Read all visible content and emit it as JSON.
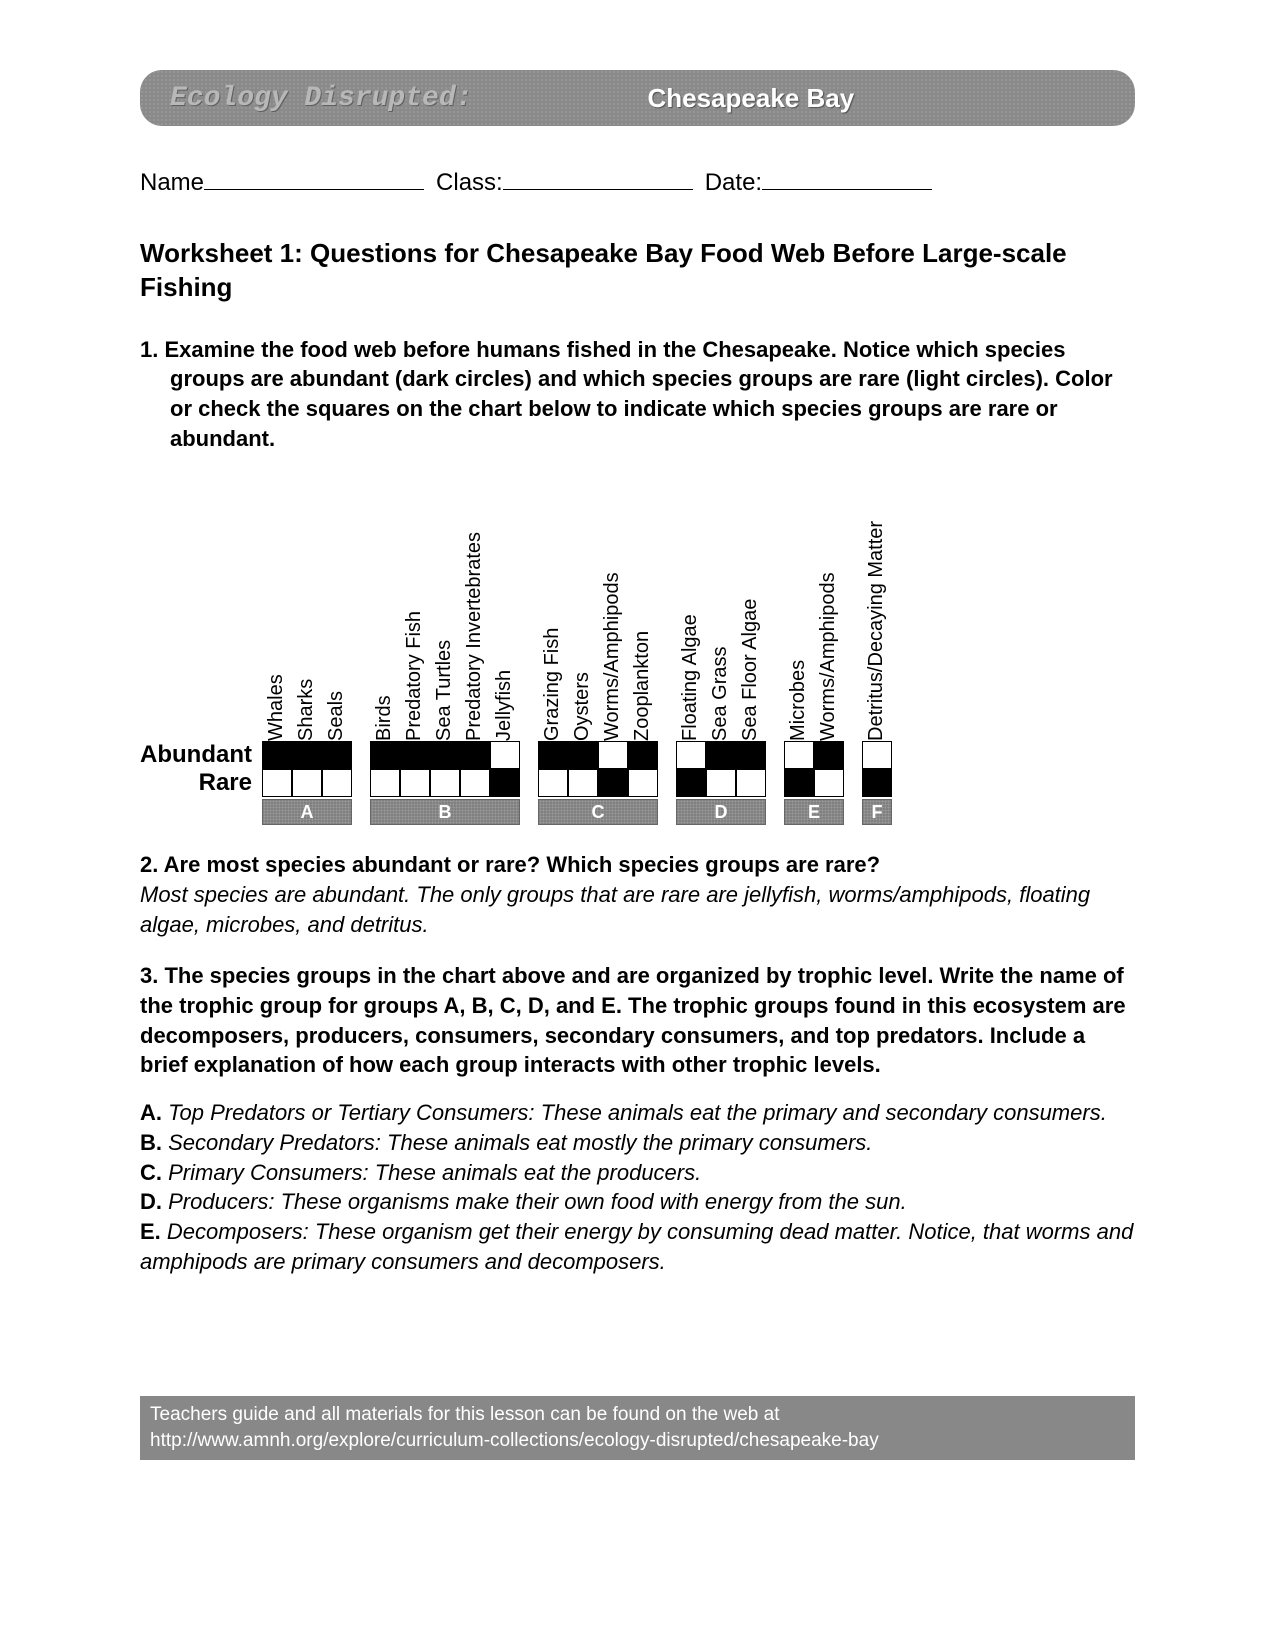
{
  "header": {
    "left": "Ecology Disrupted:",
    "right": "Chesapeake Bay"
  },
  "fields": {
    "name_label": "Name",
    "class_label": "Class:",
    "date_label": "Date:",
    "name_width": 220,
    "class_width": 190,
    "date_width": 170
  },
  "title": "Worksheet 1: Questions for Chesapeake Bay Food Web Before Large-scale Fishing",
  "q1": {
    "number": "1.",
    "text": "Examine the food web before humans fished in the Chesapeake. Notice which species groups are abundant (dark circles) and which species groups are rare (light circles). Color or check the squares on the chart below to indicate which species groups are rare or abundant."
  },
  "chart": {
    "row_labels": [
      "Abundant",
      "Rare"
    ],
    "groups": [
      {
        "letter": "A",
        "columns": [
          {
            "label": "Whales",
            "cells": [
              "black",
              "white"
            ]
          },
          {
            "label": "Sharks",
            "cells": [
              "black",
              "white"
            ]
          },
          {
            "label": "Seals",
            "cells": [
              "black",
              "white"
            ]
          }
        ]
      },
      {
        "letter": "B",
        "columns": [
          {
            "label": "Birds",
            "cells": [
              "black",
              "white"
            ]
          },
          {
            "label": "Predatory Fish",
            "cells": [
              "black",
              "white"
            ]
          },
          {
            "label": "Sea Turtles",
            "cells": [
              "black",
              "white"
            ]
          },
          {
            "label": "Predatory Invertebrates",
            "cells": [
              "black",
              "white"
            ]
          },
          {
            "label": "Jellyfish",
            "cells": [
              "white",
              "black"
            ]
          }
        ]
      },
      {
        "letter": "C",
        "columns": [
          {
            "label": "Grazing Fish",
            "cells": [
              "black",
              "white"
            ]
          },
          {
            "label": "Oysters",
            "cells": [
              "black",
              "white"
            ]
          },
          {
            "label": "Worms/Amphipods",
            "cells": [
              "white",
              "black"
            ]
          },
          {
            "label": "Zooplankton",
            "cells": [
              "black",
              "white"
            ]
          }
        ]
      },
      {
        "letter": "D",
        "columns": [
          {
            "label": "Floating Algae",
            "cells": [
              "white",
              "black"
            ]
          },
          {
            "label": "Sea Grass",
            "cells": [
              "black",
              "white"
            ]
          },
          {
            "label": "Sea Floor Algae",
            "cells": [
              "black",
              "white"
            ]
          }
        ]
      },
      {
        "letter": "E",
        "columns": [
          {
            "label": "Microbes",
            "cells": [
              "white",
              "black"
            ]
          },
          {
            "label": "Worms/Amphipods",
            "cells": [
              "black",
              "white"
            ]
          }
        ]
      },
      {
        "letter": "F",
        "columns": [
          {
            "label": "Detritus/Decaying Matter",
            "cells": [
              "white",
              "black"
            ]
          }
        ]
      }
    ]
  },
  "q2": {
    "text": "2. Are most species abundant or rare? Which species groups are rare?",
    "answer": "Most species are abundant. The only groups that are rare are jellyfish, worms/amphipods, floating algae, microbes, and detritus."
  },
  "q3": {
    "text": "3. The species groups in the chart above and are organized by trophic level. Write the name of the trophic group for groups A, B, C, D, and E. The trophic groups found in this ecosystem are decomposers, producers, consumers, secondary consumers, and top predators. Include a brief explanation of how each group interacts with other trophic levels.",
    "answers": [
      {
        "letter": "A.",
        "body": "Top Predators or Tertiary Consumers: These animals eat the primary and secondary consumers."
      },
      {
        "letter": "B.",
        "body": "Secondary Predators: These animals eat mostly the primary consumers."
      },
      {
        "letter": "C.",
        "body": "Primary Consumers: These animals eat the producers."
      },
      {
        "letter": "D.",
        "body": "Producers: These organisms make their own food with energy from the sun."
      },
      {
        "letter": "E.",
        "body": "Decomposers: These organism get their energy by consuming dead matter. Notice, that worms and amphipods are primary consumers and decomposers."
      }
    ]
  },
  "footer": {
    "line1": "Teachers guide and all materials for this lesson can be found on the web at",
    "line2": "http://www.amnh.org/explore/curriculum-collections/ecology-disrupted/chesapeake-bay"
  }
}
